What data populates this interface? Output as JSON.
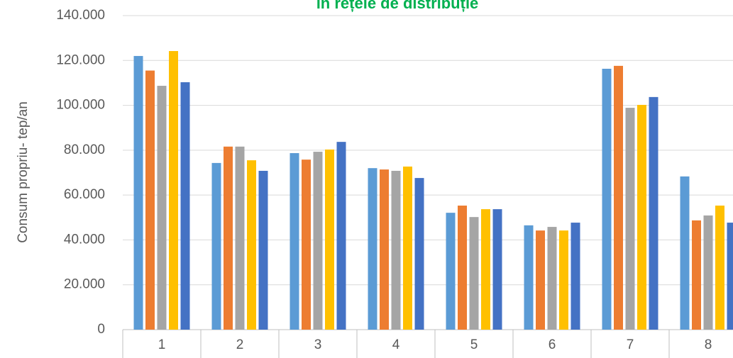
{
  "chart_data": {
    "type": "bar",
    "title": "în rețele de distribuție",
    "y_label": "Consum propriu- tep/an",
    "categories": [
      "1",
      "2",
      "3",
      "4",
      "5",
      "6",
      "7",
      "8"
    ],
    "series": [
      {
        "color": "#5b9bd5",
        "values": [
          122000,
          74300,
          78700,
          72000,
          52100,
          46500,
          116300,
          68300
        ]
      },
      {
        "color": "#ed7d31",
        "values": [
          115500,
          81600,
          75800,
          71400,
          55300,
          44200,
          117600,
          48700
        ]
      },
      {
        "color": "#a5a5a5",
        "values": [
          108700,
          81600,
          79300,
          70800,
          50200,
          45800,
          98900,
          50900
        ]
      },
      {
        "color": "#ffc000",
        "values": [
          124200,
          75500,
          80300,
          72700,
          53700,
          44200,
          100200,
          55300
        ]
      },
      {
        "color": "#4472c4",
        "values": [
          110300,
          70800,
          83700,
          67600,
          53700,
          47700,
          103700,
          47700
        ]
      }
    ],
    "ylim": [
      0,
      140000
    ],
    "yticks": [
      0,
      {
        "value": 20000,
        "label": "20.000"
      },
      {
        "value": 40000,
        "label": "40.000"
      },
      {
        "value": 60000,
        "label": "60.000"
      },
      {
        "value": 80000,
        "label": "80.000"
      },
      {
        "value": 100000,
        "label": "100.000"
      },
      {
        "value": 120000,
        "label": "120.000"
      },
      {
        "value": 140000,
        "label": "140.000"
      }
    ],
    "grid": true
  }
}
